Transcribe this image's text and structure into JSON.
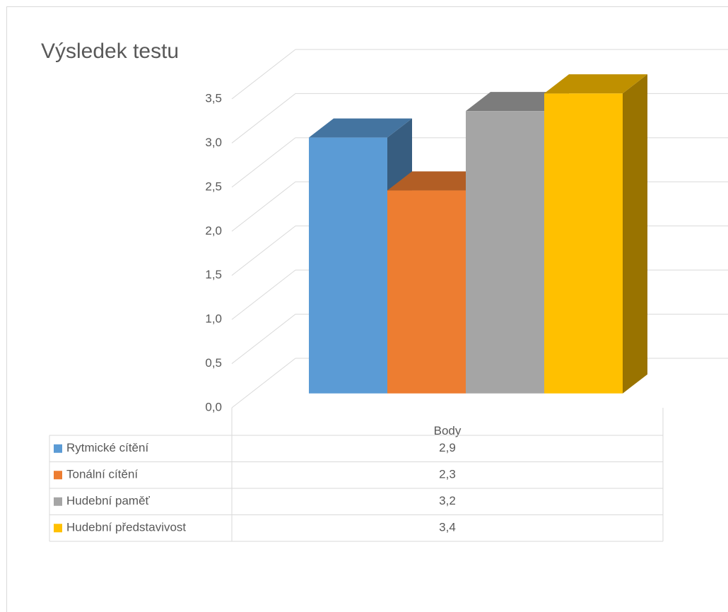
{
  "chart_data": {
    "type": "bar3d",
    "title": "Výsledek testu",
    "categories": [
      "Body"
    ],
    "series": [
      {
        "name": "Rytmické cítění",
        "color": "#5b9bd5",
        "values": [
          2.9
        ],
        "value_labels": [
          "2,9"
        ]
      },
      {
        "name": "Tonální cítění",
        "color": "#ed7d31",
        "values": [
          2.3
        ],
        "value_labels": [
          "2,3"
        ]
      },
      {
        "name": "Hudební paměť",
        "color": "#a5a5a5",
        "values": [
          3.2
        ],
        "value_labels": [
          "3,2"
        ]
      },
      {
        "name": "Hudební představivost",
        "color": "#ffc000",
        "values": [
          3.4
        ],
        "value_labels": [
          "3,4"
        ]
      }
    ],
    "ylim": [
      0,
      3.5
    ],
    "yticks": [
      {
        "value": 0,
        "label": "0,0"
      },
      {
        "value": 0.5,
        "label": "0,5"
      },
      {
        "value": 1,
        "label": "1,0"
      },
      {
        "value": 1.5,
        "label": "1,5"
      },
      {
        "value": 2,
        "label": "2,0"
      },
      {
        "value": 2.5,
        "label": "2,5"
      },
      {
        "value": 3,
        "label": "3,0"
      },
      {
        "value": 3.5,
        "label": "3,5"
      }
    ],
    "grid": true,
    "data_table": true
  }
}
